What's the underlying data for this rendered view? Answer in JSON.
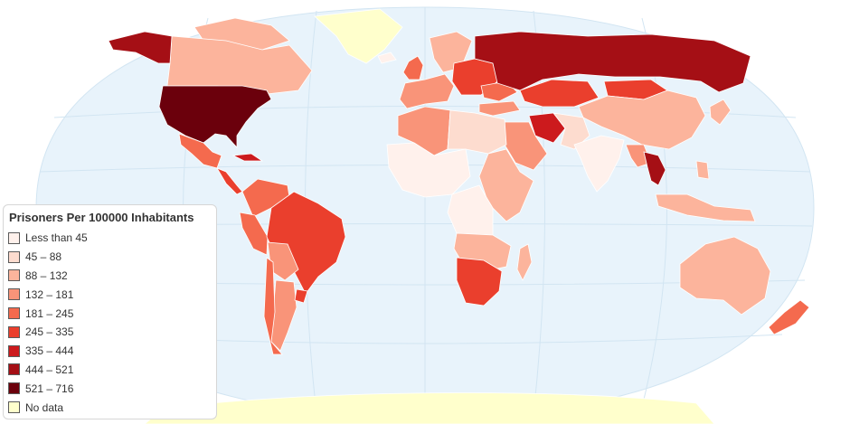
{
  "legend": {
    "title": "Prisoners Per 100000 Inhabitants",
    "items": [
      {
        "label": "Less than 45",
        "color": "#fff1ec"
      },
      {
        "label": "45 – 88",
        "color": "#fddccf"
      },
      {
        "label": "88 – 132",
        "color": "#fcb49c"
      },
      {
        "label": "132 – 181",
        "color": "#f99479"
      },
      {
        "label": "181 – 245",
        "color": "#f46a4e"
      },
      {
        "label": "245 – 335",
        "color": "#ea3f2d"
      },
      {
        "label": "335 – 444",
        "color": "#cc1a1d"
      },
      {
        "label": "444 – 521",
        "color": "#a50f15"
      },
      {
        "label": "521 – 716",
        "color": "#6b000c"
      },
      {
        "label": "No data",
        "color": "#ffffcc"
      }
    ]
  },
  "colors": {
    "ocean": "#e8f3fb",
    "graticule": "#d2e5f2",
    "country_border": "#ffffff"
  }
}
